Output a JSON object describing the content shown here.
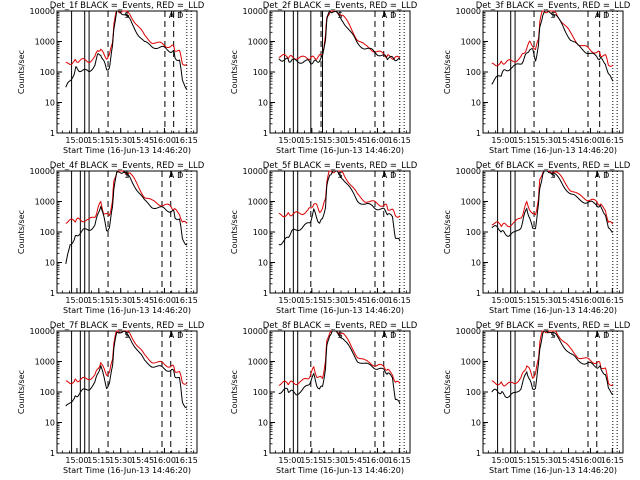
{
  "figure": {
    "panel_titles": [
      "Det_1f BLACK =_Events, RED =_LLD",
      "Det_2f BLACK =_Events, RED =_LLD",
      "Det_3f BLACK =_Events, RED =_LLD",
      "Det_4f BLACK =_Events, RED =_LLD",
      "Det_5f BLACK =_Events, RED =_LLD",
      "Det_6f BLACK =_Events, RED =_LLD",
      "Det_7f BLACK =_Events, RED =_LLD",
      "Det_8f BLACK =_Events, RED =_LLD",
      "Det_9f BLACK =_Events, RED =_LLD"
    ],
    "xlabel": "Start Time (16-Jun-13 14:46:20)",
    "ylabel": "Counts/sec",
    "colors": {
      "events": "#000000",
      "lld": "#dd0000"
    }
  },
  "chart_data": {
    "type": "line",
    "scale": "log-y",
    "xunit": "minutes since 14:46:20",
    "xlim": [
      0,
      96
    ],
    "ylim": [
      1,
      10000
    ],
    "x_ticks": [
      13.67,
      28.67,
      43.67,
      58.67,
      73.67,
      88.67
    ],
    "x_tick_labels": [
      "15:00",
      "15:15",
      "15:30",
      "15:45",
      "16:00",
      "16:15"
    ],
    "y_ticks": [
      1,
      10,
      100,
      1000,
      10000
    ],
    "y_tick_labels": [
      "1",
      "10",
      "100",
      "1000",
      "10000"
    ],
    "markers": [
      {
        "x": 48.0,
        "label": "S"
      },
      {
        "x": 78.5,
        "label": "A"
      },
      {
        "x": 84.5,
        "label": "D"
      }
    ],
    "x_base": [
      6,
      9,
      12,
      13,
      15,
      18,
      22,
      26,
      28,
      30,
      32,
      34,
      36,
      38,
      39,
      41,
      43,
      46,
      50,
      55,
      60,
      65,
      70,
      74,
      78,
      80,
      81,
      84,
      86,
      89
    ],
    "panels": [
      {
        "solid_lines": [
          10,
          19,
          22
        ],
        "dashed_lines": [
          35,
          74,
          80
        ],
        "dotted_lines": [
          89,
          92
        ],
        "events": [
          30,
          50,
          100,
          130,
          120,
          110,
          100,
          180,
          350,
          400,
          220,
          120,
          150,
          600,
          3000,
          9000,
          10000,
          8000,
          5000,
          2000,
          900,
          700,
          650,
          580,
          500,
          450,
          300,
          250,
          50,
          30
        ],
        "lld": [
          180,
          200,
          220,
          230,
          240,
          240,
          230,
          300,
          500,
          600,
          350,
          300,
          350,
          900,
          4000,
          10000,
          10000,
          10000,
          8000,
          3500,
          1500,
          1000,
          850,
          750,
          700,
          650,
          550,
          450,
          200,
          180
        ]
      },
      {
        "solid_lines": [
          10,
          16,
          19,
          28,
          36
        ],
        "dashed_lines": [
          35,
          72,
          78
        ],
        "dotted_lines": [
          89,
          92
        ],
        "events": [
          260,
          260,
          250,
          240,
          240,
          230,
          220,
          220,
          210,
          210,
          220,
          250,
          300,
          1200,
          5000,
          10000,
          10000,
          8000,
          5000,
          2000,
          900,
          600,
          500,
          400,
          330,
          300,
          290,
          280,
          270,
          260
        ],
        "lld": [
          350,
          330,
          320,
          310,
          300,
          300,
          290,
          290,
          290,
          290,
          300,
          320,
          380,
          1500,
          6000,
          10000,
          10000,
          10000,
          7000,
          3000,
          1200,
          700,
          550,
          450,
          380,
          340,
          320,
          300,
          290,
          280
        ]
      },
      {
        "solid_lines": [
          10,
          19,
          22
        ],
        "dashed_lines": [
          35,
          72,
          80
        ],
        "dotted_lines": [
          89,
          92
        ],
        "events": [
          45,
          60,
          80,
          90,
          110,
          130,
          150,
          200,
          250,
          400,
          600,
          500,
          250,
          700,
          3000,
          8000,
          10000,
          10000,
          7000,
          3000,
          1200,
          700,
          500,
          380,
          320,
          280,
          260,
          200,
          80,
          50
        ],
        "lld": [
          170,
          180,
          190,
          200,
          210,
          220,
          240,
          300,
          400,
          650,
          900,
          800,
          500,
          1200,
          5000,
          10000,
          10000,
          10000,
          9000,
          4000,
          1800,
          900,
          650,
          520,
          450,
          400,
          370,
          330,
          180,
          170
        ]
      },
      {
        "solid_lines": [
          10,
          16,
          19,
          22
        ],
        "dashed_lines": [
          35,
          72,
          78
        ],
        "dotted_lines": [
          89,
          92
        ],
        "events": [
          8,
          40,
          60,
          70,
          90,
          110,
          120,
          170,
          350,
          800,
          300,
          120,
          140,
          600,
          3000,
          8000,
          10000,
          9000,
          6000,
          2500,
          1000,
          700,
          620,
          560,
          500,
          440,
          320,
          250,
          60,
          40
        ],
        "lld": [
          220,
          230,
          240,
          250,
          250,
          250,
          240,
          320,
          600,
          900,
          450,
          350,
          380,
          1000,
          4500,
          10000,
          10000,
          10000,
          8500,
          3500,
          1500,
          1000,
          850,
          750,
          680,
          600,
          500,
          420,
          200,
          190
        ]
      },
      {
        "solid_lines": [
          10,
          16,
          19
        ],
        "dashed_lines": [
          28,
          72,
          78
        ],
        "dotted_lines": [
          89,
          92
        ],
        "events": [
          40,
          50,
          60,
          80,
          100,
          120,
          140,
          180,
          250,
          500,
          300,
          200,
          250,
          700,
          3000,
          8000,
          10000,
          9500,
          6000,
          2500,
          1100,
          800,
          700,
          600,
          520,
          450,
          380,
          300,
          70,
          50
        ],
        "lld": [
          350,
          360,
          370,
          380,
          390,
          400,
          420,
          500,
          600,
          900,
          700,
          500,
          550,
          1200,
          5000,
          10000,
          10000,
          10000,
          9000,
          3800,
          1600,
          1100,
          950,
          850,
          760,
          700,
          600,
          500,
          360,
          340
        ]
      },
      {
        "solid_lines": [
          10,
          19,
          22
        ],
        "dashed_lines": [
          35,
          72,
          78
        ],
        "dotted_lines": [
          89,
          92
        ],
        "events": [
          150,
          140,
          120,
          100,
          90,
          80,
          90,
          150,
          300,
          600,
          300,
          120,
          150,
          700,
          3000,
          8000,
          10000,
          10000,
          7000,
          3500,
          1800,
          1200,
          1000,
          900,
          800,
          700,
          600,
          400,
          120,
          100
        ],
        "lld": [
          200,
          190,
          180,
          170,
          170,
          170,
          200,
          300,
          500,
          900,
          600,
          350,
          400,
          1200,
          5000,
          10000,
          10000,
          10000,
          9500,
          5000,
          2500,
          1600,
          1300,
          1100,
          950,
          850,
          700,
          550,
          200,
          180
        ]
      },
      {
        "solid_lines": [
          10,
          16,
          19,
          22
        ],
        "dashed_lines": [
          35,
          72,
          78
        ],
        "dotted_lines": [
          89,
          92
        ],
        "events": [
          30,
          50,
          60,
          70,
          90,
          110,
          130,
          200,
          400,
          800,
          300,
          150,
          180,
          700,
          3000,
          8000,
          10000,
          9000,
          6000,
          2500,
          1000,
          750,
          650,
          580,
          520,
          460,
          350,
          260,
          50,
          30
        ],
        "lld": [
          200,
          210,
          220,
          240,
          250,
          260,
          280,
          350,
          550,
          1000,
          550,
          400,
          420,
          1100,
          4500,
          10000,
          10000,
          10000,
          8500,
          3500,
          1500,
          1050,
          900,
          800,
          720,
          640,
          520,
          420,
          210,
          200
        ]
      },
      {
        "solid_lines": [
          10,
          16,
          19
        ],
        "dashed_lines": [
          28,
          72,
          78
        ],
        "dotted_lines": [
          89,
          92
        ],
        "events": [
          100,
          110,
          120,
          110,
          100,
          90,
          110,
          160,
          250,
          350,
          180,
          120,
          150,
          600,
          3000,
          8000,
          10000,
          9000,
          6000,
          2500,
          1100,
          800,
          700,
          600,
          500,
          450,
          380,
          300,
          60,
          40
        ],
        "lld": [
          190,
          195,
          200,
          200,
          200,
          200,
          220,
          280,
          400,
          600,
          350,
          280,
          300,
          1000,
          4500,
          10000,
          10000,
          10000,
          8500,
          3500,
          1500,
          1000,
          850,
          750,
          650,
          580,
          480,
          400,
          200,
          190
        ]
      },
      {
        "solid_lines": [
          10,
          19,
          22
        ],
        "dashed_lines": [
          35,
          72,
          78
        ],
        "dotted_lines": [
          89,
          92
        ],
        "events": [
          100,
          110,
          100,
          90,
          80,
          70,
          90,
          140,
          250,
          500,
          250,
          120,
          150,
          700,
          3000,
          8000,
          10000,
          10000,
          7000,
          3500,
          1700,
          1100,
          900,
          800,
          700,
          650,
          550,
          400,
          120,
          90
        ],
        "lld": [
          200,
          200,
          190,
          180,
          180,
          180,
          210,
          280,
          450,
          800,
          500,
          320,
          380,
          1200,
          5000,
          10000,
          10000,
          10000,
          9500,
          5000,
          2400,
          1500,
          1200,
          1050,
          950,
          850,
          700,
          550,
          200,
          180
        ]
      }
    ]
  }
}
